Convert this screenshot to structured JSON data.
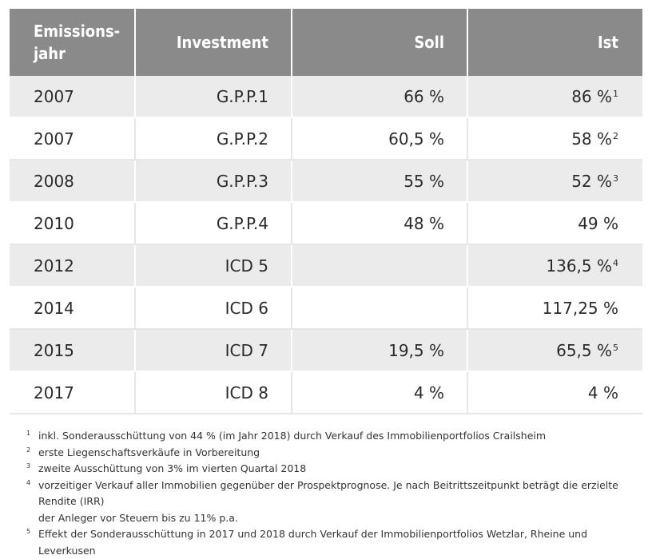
{
  "table": {
    "headers": [
      "Emissions-\njahr",
      "Investment",
      "Soll",
      "Ist"
    ],
    "rows": [
      {
        "year": "2007",
        "investment": "G.P.P.1",
        "soll": "66 %",
        "ist": "86 %",
        "ist_note": "1"
      },
      {
        "year": "2007",
        "investment": "G.P.P.2",
        "soll": "60,5 %",
        "ist": "58 %",
        "ist_note": "2"
      },
      {
        "year": "2008",
        "investment": "G.P.P.3",
        "soll": "55 %",
        "ist": "52 %",
        "ist_note": "3"
      },
      {
        "year": "2010",
        "investment": "G.P.P.4",
        "soll": "48 %",
        "ist": "49 %",
        "ist_note": ""
      },
      {
        "year": "2012",
        "investment": "ICD 5",
        "soll": "",
        "ist": "136,5 %",
        "ist_note": "4"
      },
      {
        "year": "2014",
        "investment": "ICD 6",
        "soll": "",
        "ist": "117,25 %",
        "ist_note": ""
      },
      {
        "year": "2015",
        "investment": "ICD 7",
        "soll": "19,5 %",
        "ist": "65,5 %",
        "ist_note": "5"
      },
      {
        "year": "2017",
        "investment": "ICD 8",
        "soll": "4 %",
        "ist": "4 %",
        "ist_note": ""
      }
    ]
  },
  "footnotes": [
    {
      "mark": "1",
      "text": "inkl. Sonderausschüttung von 44 % (im Jahr 2018) durch Verkauf des Immobilienportfolios Crailsheim"
    },
    {
      "mark": "2",
      "text": "erste Liegenschaftsverkäufe in Vorbereitung"
    },
    {
      "mark": "3",
      "text": "zweite Ausschüttung  von 3% im vierten Quartal 2018"
    },
    {
      "mark": "4",
      "text": "vorzeitiger Verkauf aller Immobilien gegenüber der Prospektprognose. Je nach Beitrittszeitpunkt beträgt die erzielte Rendite (IRR)\nder Anleger vor Steuern bis zu 11% p.a."
    },
    {
      "mark": "5",
      "text": "Effekt der Sonderausschüttung in 2017 und 2018 durch Verkauf der Immobilienportfolios Wetzlar, Rheine und Leverkusen"
    }
  ]
}
